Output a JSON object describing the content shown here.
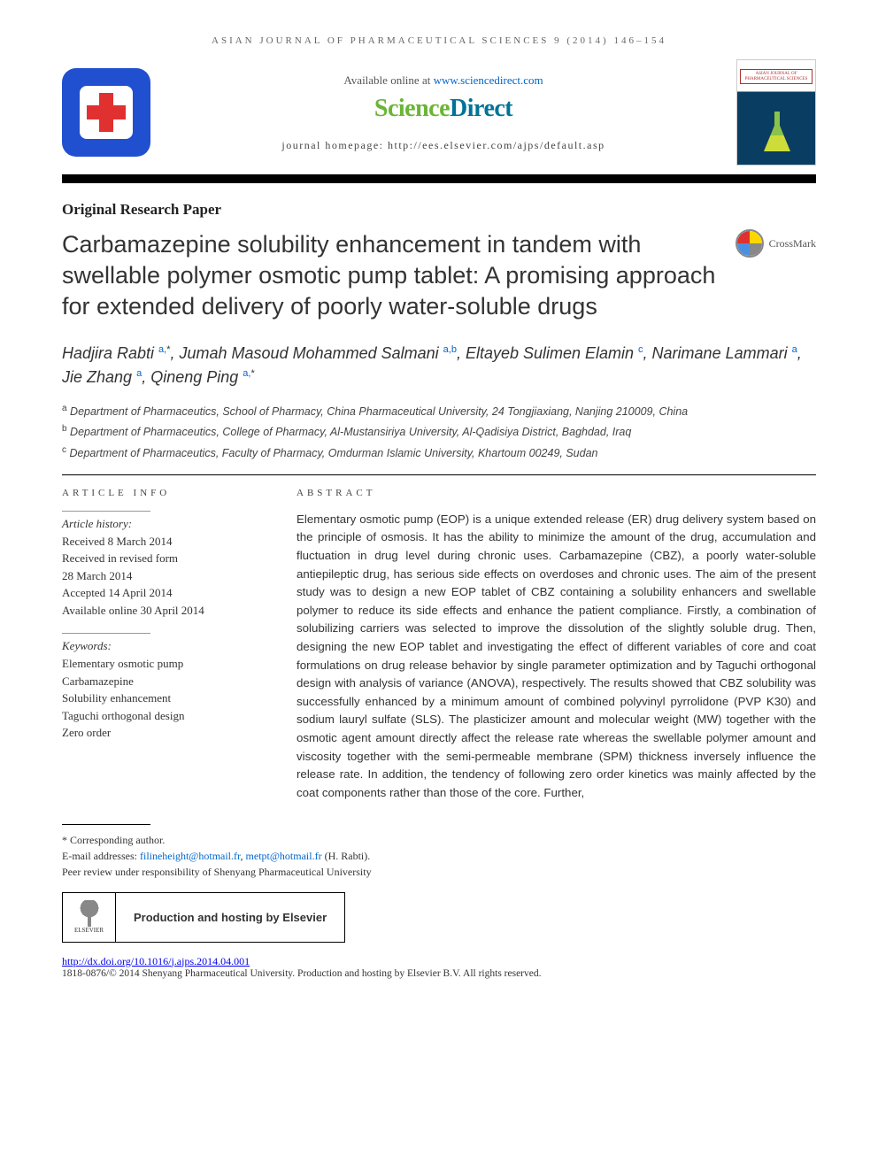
{
  "header": {
    "running_head": "ASIAN JOURNAL OF PHARMACEUTICAL SCIENCES 9 (2014) 146–154",
    "available_prefix": "Available online at ",
    "available_url": "www.sciencedirect.com",
    "brand_sci": "Science",
    "brand_dir": "Direct",
    "homepage_label": "journal homepage: http://ees.elsevier.com/ajps/default.asp",
    "cover_title": "ASIAN JOURNAL OF PHARMACEUTICAL SCIENCES",
    "crossmark": "CrossMark"
  },
  "article": {
    "type": "Original Research Paper",
    "title": "Carbamazepine solubility enhancement in tandem with swellable polymer osmotic pump tablet: A promising approach for extended delivery of poorly water-soluble drugs"
  },
  "authors_html": "Hadjira Rabti <sup>a,</sup><sup class='asterisk'>*</sup>, Jumah Masoud Mohammed Salmani <sup>a,b</sup>, Eltayeb Sulimen Elamin <sup>c</sup>, Narimane Lammari <sup>a</sup>, Jie Zhang <sup>a</sup>, Qineng Ping <sup>a,</sup><sup class='asterisk'>*</sup>",
  "affiliations": {
    "a": "Department of Pharmaceutics, School of Pharmacy, China Pharmaceutical University, 24 Tongjiaxiang, Nanjing 210009, China",
    "b": "Department of Pharmaceutics, College of Pharmacy, Al-Mustansiriya University, Al-Qadisiya District, Baghdad, Iraq",
    "c": "Department of Pharmaceutics, Faculty of Pharmacy, Omdurman Islamic University, Khartoum 00249, Sudan"
  },
  "info": {
    "heading": "article info",
    "history_label": "Article history:",
    "history": [
      "Received 8 March 2014",
      "Received in revised form",
      "28 March 2014",
      "Accepted 14 April 2014",
      "Available online 30 April 2014"
    ],
    "keywords_label": "Keywords:",
    "keywords": [
      "Elementary osmotic pump",
      "Carbamazepine",
      "Solubility enhancement",
      "Taguchi orthogonal design",
      "Zero order"
    ]
  },
  "abstract": {
    "heading": "abstract",
    "text": "Elementary osmotic pump (EOP) is a unique extended release (ER) drug delivery system based on the principle of osmosis. It has the ability to minimize the amount of the drug, accumulation and fluctuation in drug level during chronic uses. Carbamazepine (CBZ), a poorly water-soluble antiepileptic drug, has serious side effects on overdoses and chronic uses. The aim of the present study was to design a new EOP tablet of CBZ containing a solubility enhancers and swellable polymer to reduce its side effects and enhance the patient compliance. Firstly, a combination of solubilizing carriers was selected to improve the dissolution of the slightly soluble drug. Then, designing the new EOP tablet and investigating the effect of different variables of core and coat formulations on drug release behavior by single parameter optimization and by Taguchi orthogonal design with analysis of variance (ANOVA), respectively. The results showed that CBZ solubility was successfully enhanced by a minimum amount of combined polyvinyl pyrrolidone (PVP K30) and sodium lauryl sulfate (SLS). The plasticizer amount and molecular weight (MW) together with the osmotic agent amount directly affect the release rate whereas the swellable polymer amount and viscosity together with the semi-permeable membrane (SPM) thickness inversely influence the release rate. In addition, the tendency of following zero order kinetics was mainly affected by the coat components rather than those of the core. Further,"
  },
  "footer": {
    "corresponding": "* Corresponding author.",
    "email_label": "E-mail addresses: ",
    "email1": "filineheight@hotmail.fr",
    "email_sep": ", ",
    "email2": "metpt@hotmail.fr",
    "email_tail": " (H. Rabti).",
    "peer_review": "Peer review under responsibility of Shenyang Pharmaceutical University",
    "elsevier": "ELSEVIER",
    "hosting": "Production and hosting by Elsevier",
    "doi": "http://dx.doi.org/10.1016/j.ajps.2014.04.001",
    "copyright": "1818-0876/© 2014 Shenyang Pharmaceutical University. Production and hosting by Elsevier B.V. All rights reserved."
  },
  "colors": {
    "link": "#0066cc",
    "sci_green": "#6bb535",
    "dir_teal": "#007398",
    "logo_blue": "#2050d0",
    "cross_red": "#e03030"
  }
}
